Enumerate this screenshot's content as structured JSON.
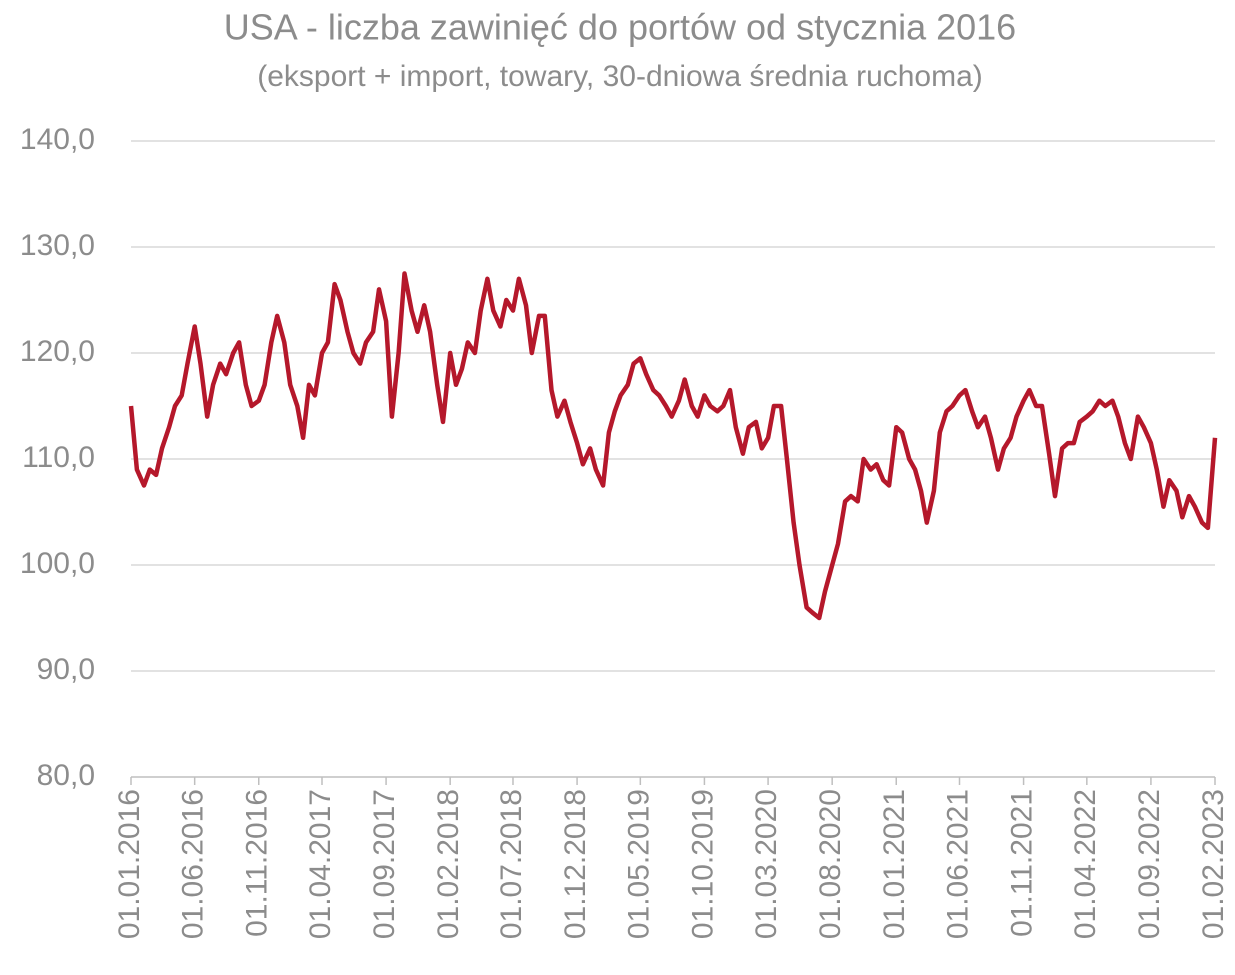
{
  "chart_data": {
    "type": "line",
    "title": "USA - liczba zawinięć do portów od stycznia 2016",
    "subtitle": "(eksport + import, towary, 30-dniowa średnia ruchoma)",
    "x": [
      "01.01.2016",
      "15.01.2016",
      "01.02.2016",
      "15.02.2016",
      "01.03.2016",
      "15.03.2016",
      "01.04.2016",
      "15.04.2016",
      "01.05.2016",
      "15.05.2016",
      "01.06.2016",
      "15.06.2016",
      "01.07.2016",
      "15.07.2016",
      "01.08.2016",
      "15.08.2016",
      "01.09.2016",
      "15.09.2016",
      "01.10.2016",
      "15.10.2016",
      "01.11.2016",
      "15.11.2016",
      "01.12.2016",
      "15.12.2016",
      "01.01.2017",
      "15.01.2017",
      "01.02.2017",
      "15.02.2017",
      "01.03.2017",
      "15.03.2017",
      "01.04.2017",
      "15.04.2017",
      "01.05.2017",
      "15.05.2017",
      "01.06.2017",
      "15.06.2017",
      "01.07.2017",
      "15.07.2017",
      "01.08.2017",
      "15.08.2017",
      "01.09.2017",
      "15.09.2017",
      "01.10.2017",
      "15.10.2017",
      "01.11.2017",
      "15.11.2017",
      "01.12.2017",
      "15.12.2017",
      "01.01.2018",
      "15.01.2018",
      "01.02.2018",
      "15.02.2018",
      "01.03.2018",
      "15.03.2018",
      "01.04.2018",
      "15.04.2018",
      "01.05.2018",
      "15.05.2018",
      "01.06.2018",
      "15.06.2018",
      "01.07.2018",
      "15.07.2018",
      "01.08.2018",
      "15.08.2018",
      "01.09.2018",
      "15.09.2018",
      "01.10.2018",
      "15.10.2018",
      "01.11.2018",
      "15.11.2018",
      "01.12.2018",
      "15.12.2018",
      "01.01.2019",
      "15.01.2019",
      "01.02.2019",
      "15.02.2019",
      "01.03.2019",
      "15.03.2019",
      "01.04.2019",
      "15.04.2019",
      "01.05.2019",
      "15.05.2019",
      "01.06.2019",
      "15.06.2019",
      "01.07.2019",
      "15.07.2019",
      "01.08.2019",
      "15.08.2019",
      "01.09.2019",
      "15.09.2019",
      "01.10.2019",
      "15.10.2019",
      "01.11.2019",
      "15.11.2019",
      "01.12.2019",
      "15.12.2019",
      "01.01.2020",
      "15.01.2020",
      "01.02.2020",
      "15.02.2020",
      "01.03.2020",
      "15.03.2020",
      "01.04.2020",
      "15.04.2020",
      "01.05.2020",
      "15.05.2020",
      "01.06.2020",
      "15.06.2020",
      "01.07.2020",
      "15.07.2020",
      "01.08.2020",
      "15.08.2020",
      "01.09.2020",
      "15.09.2020",
      "01.10.2020",
      "15.10.2020",
      "01.11.2020",
      "15.11.2020",
      "01.12.2020",
      "15.12.2020",
      "01.01.2021",
      "15.01.2021",
      "01.02.2021",
      "15.02.2021",
      "01.03.2021",
      "15.03.2021",
      "01.04.2021",
      "15.04.2021",
      "01.05.2021",
      "15.05.2021",
      "01.06.2021",
      "15.06.2021",
      "01.07.2021",
      "15.07.2021",
      "01.08.2021",
      "15.08.2021",
      "01.09.2021",
      "15.09.2021",
      "01.10.2021",
      "15.10.2021",
      "01.11.2021",
      "15.11.2021",
      "01.12.2021",
      "15.12.2021",
      "01.01.2022",
      "15.01.2022",
      "01.02.2022",
      "15.02.2022",
      "01.03.2022",
      "15.03.2022",
      "01.04.2022",
      "15.04.2022",
      "01.05.2022",
      "15.05.2022",
      "01.06.2022",
      "15.06.2022",
      "01.07.2022",
      "15.07.2022",
      "01.08.2022",
      "15.08.2022",
      "01.09.2022",
      "15.09.2022",
      "01.10.2022",
      "15.10.2022",
      "01.11.2022",
      "15.11.2022",
      "01.12.2022",
      "15.12.2022",
      "01.01.2023",
      "15.01.2023",
      "01.02.2023"
    ],
    "series": [
      {
        "name": "USA",
        "color": "#b5182b",
        "values": [
          115,
          109,
          107.5,
          109,
          108.5,
          111,
          113,
          115,
          116,
          119,
          122.5,
          119,
          114,
          117,
          119,
          118,
          120,
          121,
          117,
          115,
          115.5,
          117,
          121,
          123.5,
          121,
          117,
          115,
          112,
          117,
          116,
          120,
          121,
          126.5,
          125,
          122,
          120,
          119,
          121,
          122,
          126,
          123,
          114,
          120,
          127.5,
          124,
          122,
          124.5,
          122,
          117,
          113.5,
          120,
          117,
          118.5,
          121,
          120,
          124,
          127,
          124,
          122.5,
          125,
          124,
          127,
          124.5,
          120,
          123.5,
          123.5,
          116.5,
          114,
          115.5,
          113.5,
          111.5,
          109.5,
          111,
          109,
          107.5,
          112.5,
          114.5,
          116,
          117,
          119,
          119.5,
          118,
          116.5,
          116,
          115,
          114,
          115.5,
          117.5,
          115,
          114,
          116,
          115,
          114.5,
          115,
          116.5,
          113,
          110.5,
          113,
          113.5,
          111,
          112,
          115,
          115,
          110,
          104,
          100,
          96,
          95.5,
          95,
          97.5,
          100,
          102,
          106,
          106.5,
          106,
          110,
          109,
          109.5,
          108,
          107.5,
          113,
          112.5,
          110,
          109,
          107,
          104,
          107,
          112.5,
          114.5,
          115,
          116,
          116.5,
          114.5,
          113,
          114,
          112,
          109,
          111,
          112,
          114,
          115.5,
          116.5,
          115,
          115,
          110.5,
          106.5,
          111,
          111.5,
          111.5,
          113.5,
          114,
          114.5,
          115.5,
          115,
          115.5,
          114,
          111.5,
          110,
          114,
          113,
          111.5,
          109,
          105.5,
          108,
          107,
          104.5,
          106.5,
          105.5,
          104,
          103.5,
          112
        ]
      }
    ],
    "xlim": [
      "01.01.2016",
      "01.02.2023"
    ],
    "xticks": [
      "01.01.2016",
      "01.06.2016",
      "01.11.2016",
      "01.04.2017",
      "01.09.2017",
      "01.02.2018",
      "01.07.2018",
      "01.12.2018",
      "01.05.2019",
      "01.10.2019",
      "01.03.2020",
      "01.08.2020",
      "01.01.2021",
      "01.06.2021",
      "01.11.2021",
      "01.04.2022",
      "01.09.2022",
      "01.02.2023"
    ],
    "ylim": [
      80,
      140
    ],
    "yticks": [
      {
        "value": 80,
        "label": "80,0"
      },
      {
        "value": 90,
        "label": "90,0"
      },
      {
        "value": 100,
        "label": "100,0"
      },
      {
        "value": 110,
        "label": "110,0"
      },
      {
        "value": 120,
        "label": "120,0"
      },
      {
        "value": 130,
        "label": "130,0"
      },
      {
        "value": 140,
        "label": "140,0"
      }
    ],
    "grid": true
  }
}
